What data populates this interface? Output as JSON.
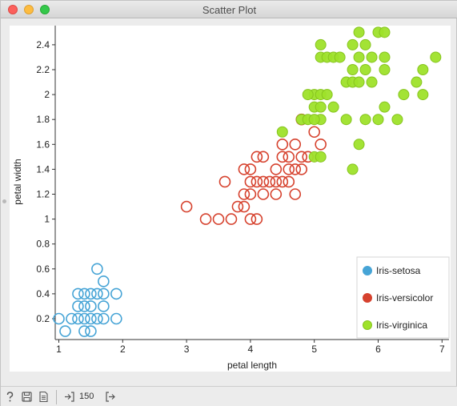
{
  "window": {
    "title": "Scatter Plot"
  },
  "statusbar": {
    "count": "150",
    "icons": [
      "help-icon",
      "save-icon",
      "report-icon",
      "input-data-icon",
      "output-data-icon"
    ]
  },
  "chart_data": {
    "type": "scatter",
    "xlabel": "petal length",
    "ylabel": "petal width",
    "xlim": [
      0.9,
      7.0
    ],
    "ylim": [
      0.05,
      2.6
    ],
    "xticks": [
      1,
      2,
      3,
      4,
      5,
      6,
      7
    ],
    "yticks": [
      0.2,
      0.4,
      0.6,
      0.8,
      1,
      1.2,
      1.4,
      1.6,
      1.8,
      2,
      2.2,
      2.4
    ],
    "xtick_labels": [
      "1",
      "2",
      "3",
      "4",
      "5",
      "6",
      "7"
    ],
    "ytick_labels": [
      "0.2",
      "0.4",
      "0.6",
      "0.8",
      "1",
      "1.2",
      "1.4",
      "1.6",
      "1.8",
      "2",
      "2.2",
      "2.4"
    ],
    "legend_placement": "bottom-right",
    "series": [
      {
        "name": "Iris-setosa",
        "color": "#46a4d6",
        "marker": "hollow-circle",
        "points": [
          [
            1.1,
            0.1
          ],
          [
            1.4,
            0.1
          ],
          [
            1.5,
            0.1
          ],
          [
            1.5,
            0.2
          ],
          [
            1.6,
            0.2
          ],
          [
            1.4,
            0.2
          ],
          [
            1.3,
            0.2
          ],
          [
            1.2,
            0.2
          ],
          [
            1.0,
            0.2
          ],
          [
            1.7,
            0.2
          ],
          [
            1.9,
            0.2
          ],
          [
            1.5,
            0.3
          ],
          [
            1.4,
            0.3
          ],
          [
            1.3,
            0.3
          ],
          [
            1.7,
            0.3
          ],
          [
            1.4,
            0.4
          ],
          [
            1.3,
            0.4
          ],
          [
            1.5,
            0.4
          ],
          [
            1.6,
            0.4
          ],
          [
            1.7,
            0.4
          ],
          [
            1.9,
            0.4
          ],
          [
            1.7,
            0.5
          ],
          [
            1.6,
            0.6
          ]
        ]
      },
      {
        "name": "Iris-versicolor",
        "color": "#d6422e",
        "marker": "hollow-circle",
        "points": [
          [
            3.0,
            1.1
          ],
          [
            3.3,
            1.0
          ],
          [
            3.5,
            1.0
          ],
          [
            3.7,
            1.0
          ],
          [
            4.0,
            1.0
          ],
          [
            4.1,
            1.0
          ],
          [
            3.9,
            1.1
          ],
          [
            3.8,
            1.1
          ],
          [
            3.6,
            1.3
          ],
          [
            3.9,
            1.2
          ],
          [
            3.9,
            1.4
          ],
          [
            4.0,
            1.2
          ],
          [
            4.0,
            1.3
          ],
          [
            4.1,
            1.3
          ],
          [
            4.2,
            1.2
          ],
          [
            4.2,
            1.3
          ],
          [
            4.3,
            1.3
          ],
          [
            4.4,
            1.3
          ],
          [
            4.4,
            1.2
          ],
          [
            4.4,
            1.4
          ],
          [
            4.5,
            1.3
          ],
          [
            4.5,
            1.5
          ],
          [
            4.5,
            1.6
          ],
          [
            4.6,
            1.3
          ],
          [
            4.6,
            1.4
          ],
          [
            4.6,
            1.5
          ],
          [
            4.7,
            1.2
          ],
          [
            4.7,
            1.4
          ],
          [
            4.7,
            1.6
          ],
          [
            4.8,
            1.4
          ],
          [
            4.8,
            1.5
          ],
          [
            4.8,
            1.8
          ],
          [
            4.9,
            1.5
          ],
          [
            5.0,
            1.7
          ],
          [
            5.1,
            1.6
          ],
          [
            4.1,
            1.5
          ],
          [
            4.2,
            1.5
          ],
          [
            4.0,
            1.4
          ]
        ]
      },
      {
        "name": "Iris-virginica",
        "color": "#9ee22a",
        "marker": "filled-circle",
        "points": [
          [
            4.5,
            1.7
          ],
          [
            4.8,
            1.8
          ],
          [
            4.9,
            1.8
          ],
          [
            5.0,
            1.5
          ],
          [
            5.1,
            1.5
          ],
          [
            5.6,
            1.4
          ],
          [
            5.7,
            1.6
          ],
          [
            5.0,
            2.0
          ],
          [
            5.1,
            1.8
          ],
          [
            5.0,
            1.9
          ],
          [
            4.9,
            2.0
          ],
          [
            5.0,
            1.8
          ],
          [
            5.1,
            1.9
          ],
          [
            5.1,
            2.0
          ],
          [
            5.2,
            2.0
          ],
          [
            5.1,
            2.3
          ],
          [
            5.2,
            2.3
          ],
          [
            5.3,
            2.3
          ],
          [
            5.4,
            2.3
          ],
          [
            5.1,
            2.4
          ],
          [
            5.3,
            1.9
          ],
          [
            5.5,
            1.8
          ],
          [
            5.5,
            2.1
          ],
          [
            5.6,
            2.1
          ],
          [
            5.6,
            2.2
          ],
          [
            5.6,
            2.4
          ],
          [
            5.7,
            2.1
          ],
          [
            5.7,
            2.3
          ],
          [
            5.7,
            2.5
          ],
          [
            5.8,
            1.8
          ],
          [
            5.8,
            2.2
          ],
          [
            5.8,
            2.4
          ],
          [
            5.9,
            2.1
          ],
          [
            5.9,
            2.3
          ],
          [
            6.0,
            1.8
          ],
          [
            6.0,
            2.5
          ],
          [
            6.1,
            1.9
          ],
          [
            6.1,
            2.3
          ],
          [
            6.1,
            2.5
          ],
          [
            6.1,
            2.2
          ],
          [
            6.3,
            1.8
          ],
          [
            6.4,
            2.0
          ],
          [
            6.6,
            2.1
          ],
          [
            6.7,
            2.0
          ],
          [
            6.7,
            2.2
          ],
          [
            6.9,
            2.3
          ]
        ]
      }
    ]
  }
}
